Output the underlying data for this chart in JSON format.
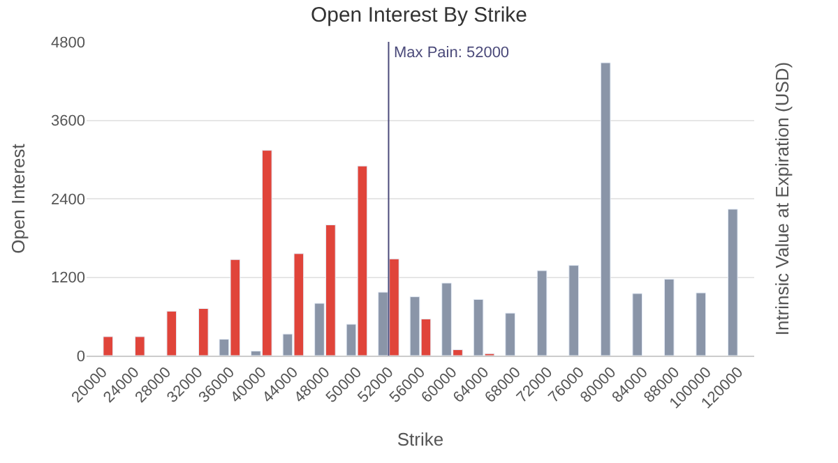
{
  "chart_data": {
    "type": "bar",
    "title": "Open Interest By Strike",
    "xlabel": "Strike",
    "ylabel": "Open Interest",
    "y2label": "Intrinsic Value at Expiration (USD)",
    "categories": [
      "20000",
      "24000",
      "28000",
      "32000",
      "36000",
      "40000",
      "44000",
      "48000",
      "50000",
      "52000",
      "56000",
      "60000",
      "64000",
      "68000",
      "72000",
      "76000",
      "80000",
      "84000",
      "88000",
      "100000",
      "120000"
    ],
    "series": [
      {
        "color": "#8a95a8",
        "values": [
          null,
          null,
          null,
          null,
          250,
          70,
          330,
          800,
          480,
          970,
          900,
          1110,
          860,
          650,
          1300,
          1380,
          4480,
          950,
          1170,
          960,
          2240
        ]
      },
      {
        "color": "#e0443a",
        "values": [
          290,
          290,
          680,
          720,
          1470,
          3140,
          1560,
          2000,
          2900,
          1480,
          560,
          90,
          30,
          null,
          null,
          null,
          null,
          null,
          null,
          null,
          null
        ]
      }
    ],
    "ylim": [
      0,
      4800
    ],
    "yticks": [
      0,
      1200,
      2400,
      3600,
      4800
    ],
    "grid": "y",
    "legend": false,
    "ref_lines": [
      {
        "axis": "x",
        "value": "52000",
        "label": "Max Pain: 52000",
        "color": "#4b4a7a"
      }
    ]
  }
}
